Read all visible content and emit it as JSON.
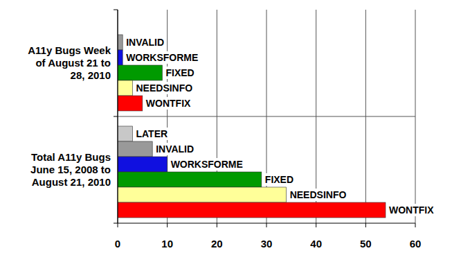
{
  "chart_data": {
    "type": "bar",
    "orientation": "horizontal",
    "categories": [
      "A11y Bugs Week of August 21 to 28, 2010",
      "Total A11y Bugs June 15, 2008 to August 21, 2010"
    ],
    "series": [
      {
        "name": "LATER",
        "color": "#c8c8c8",
        "values": [
          null,
          3
        ]
      },
      {
        "name": "INVALID",
        "color": "#999999",
        "values": [
          1,
          7
        ]
      },
      {
        "name": "WORKSFORME",
        "color": "#1010e0",
        "values": [
          1,
          10
        ]
      },
      {
        "name": "FIXED",
        "color": "#009a00",
        "values": [
          9,
          29
        ]
      },
      {
        "name": "NEEDSINFO",
        "color": "#ffff99",
        "values": [
          3,
          34
        ]
      },
      {
        "name": "WONTFIX",
        "color": "#ff0000",
        "values": [
          5,
          54
        ]
      }
    ],
    "xlim": [
      0,
      60
    ],
    "xticks": [
      0,
      10,
      20,
      30,
      40,
      50,
      60
    ],
    "grid": true
  }
}
